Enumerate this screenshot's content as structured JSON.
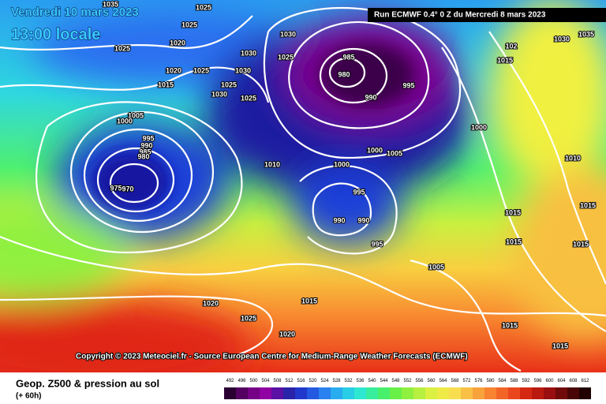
{
  "header": {
    "date": "Vendredi 10 mars 2023",
    "time": "13:00 locale",
    "run": "Run ECMWF 0.4° 0 Z du Mercredi 8 mars 2023"
  },
  "copyright": "Copyright © 2023 Meteociel.fr - Source European Centre for Medium-Range Weather Forecasts (ECMWF)",
  "footer": {
    "title": "Geop. Z500 & pression au sol",
    "lead": "(+ 60h)"
  },
  "legend": {
    "ticks": [
      "492",
      "496",
      "500",
      "504",
      "508",
      "512",
      "516",
      "520",
      "524",
      "528",
      "532",
      "536",
      "540",
      "544",
      "548",
      "552",
      "556",
      "560",
      "564",
      "568",
      "572",
      "576",
      "580",
      "584",
      "588",
      "592",
      "596",
      "600",
      "604",
      "608",
      "612"
    ]
  },
  "isobar_labels": [
    "1035",
    "1025",
    "1025",
    "1020",
    "1025",
    "1020",
    "1025",
    "1015",
    "1030",
    "1030",
    "1025",
    "1030",
    "1025",
    "1030",
    "1025",
    "985",
    "980",
    "990",
    "995",
    "1005",
    "1000",
    "995",
    "990",
    "985",
    "980",
    "975",
    "970",
    "1010",
    "1000",
    "1000",
    "1005",
    "1000",
    "995",
    "990",
    "990",
    "995",
    "1005",
    "1015",
    "1015",
    "1020",
    "1025",
    "1015",
    "1020",
    "1015",
    "1015",
    "1010",
    "1015",
    "1015",
    "1030",
    "1035",
    "102",
    "1015"
  ]
}
